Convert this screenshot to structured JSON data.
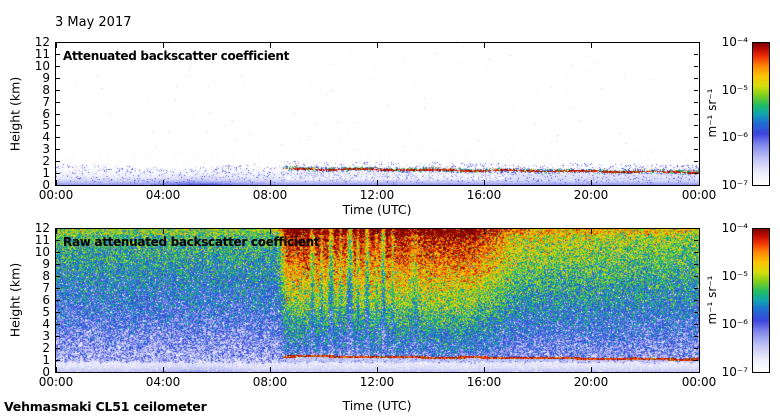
{
  "header": {
    "date_title": "3 May 2017"
  },
  "footer": {
    "station_label": "Vehmasmaki CL51 ceilometer"
  },
  "colors": {
    "background": "#ffffff",
    "axis": "#000000",
    "text": "#000000"
  },
  "colormap": {
    "description": "jet-style colormap fading to white at the low end",
    "stops": [
      [
        0.0,
        "#ffffff"
      ],
      [
        0.09,
        "#ececfb"
      ],
      [
        0.18,
        "#c3c6f5"
      ],
      [
        0.28,
        "#8289ec"
      ],
      [
        0.36,
        "#3c45dd"
      ],
      [
        0.44,
        "#1e6fd0"
      ],
      [
        0.5,
        "#0fa3b1"
      ],
      [
        0.56,
        "#1fbb66"
      ],
      [
        0.63,
        "#7ccf1e"
      ],
      [
        0.7,
        "#d8de0a"
      ],
      [
        0.77,
        "#fdc303"
      ],
      [
        0.84,
        "#fd8403"
      ],
      [
        0.9,
        "#f03405"
      ],
      [
        0.95,
        "#c40d03"
      ],
      [
        1.0,
        "#7a0403"
      ]
    ]
  },
  "chart_data": [
    {
      "type": "heatmap",
      "panel": "top",
      "title": "Attenuated backscatter coefficient",
      "xlabel": "Time (UTC)",
      "ylabel": "Height (km)",
      "x_ticks": [
        "00:00",
        "04:00",
        "08:00",
        "12:00",
        "16:00",
        "20:00",
        "00:00"
      ],
      "x_range_hours": [
        0,
        24
      ],
      "y_ticks": [
        0,
        1,
        2,
        3,
        4,
        5,
        6,
        7,
        8,
        9,
        10,
        11,
        12
      ],
      "y_range_km": [
        0,
        12
      ],
      "grid": false,
      "colorbar": {
        "unit": "m⁻¹ sr⁻¹",
        "tick_labels": [
          "10⁻⁴",
          "10⁻⁵",
          "10⁻⁶",
          "10⁻⁷"
        ],
        "log10_range": [
          -7,
          -4
        ],
        "position": "right"
      },
      "features": {
        "boundary_layer": "Aerosol/boundary layer from surface to ~1.0-1.5 km all day; ~1e-6 m-1 sr-1 near surface fading below 1e-7 by ~1.5 km",
        "elevated_layer": "Thin strong layer (~1e-5 to 1e-4, red/green speckled) near 1.3-1.5 km from ~08:30 UTC onward, slowly descending to ~1.1 km by midnight",
        "free_troposphere": "Below detection limit (<1e-7, white) above ~2 km"
      },
      "render": {
        "seed": 11,
        "bl_surface_value": 0.3,
        "bl_decay_km": 0.55,
        "bl_top_km": 1.05,
        "morning_patch": {
          "center_hour": 5.3,
          "width_hour": 1.5,
          "boost": 0.1
        },
        "aerosol_layer": {
          "start_hour": 8.45,
          "height_start_km": 1.4,
          "height_end_km": 1.12,
          "core_value": 0.88
        }
      }
    },
    {
      "type": "heatmap",
      "panel": "bottom",
      "title": "Raw attenuated backscatter coefficient",
      "xlabel": "Time (UTC)",
      "ylabel": "Height (km)",
      "x_ticks": [
        "00:00",
        "04:00",
        "08:00",
        "12:00",
        "16:00",
        "20:00",
        "00:00"
      ],
      "x_range_hours": [
        0,
        24
      ],
      "y_ticks": [
        0,
        1,
        2,
        3,
        4,
        5,
        6,
        7,
        8,
        9,
        10,
        11,
        12
      ],
      "y_range_km": [
        0,
        12
      ],
      "grid": false,
      "colorbar": {
        "unit": "m⁻¹ sr⁻¹",
        "tick_labels": [
          "10⁻⁴",
          "10⁻⁵",
          "10⁻⁶",
          "10⁻⁷"
        ],
        "log10_range": [
          -7,
          -4
        ],
        "position": "right"
      },
      "features": {
        "noise_night": "Height-increasing noise: ~1e-7-1e-6 (blue/white) below ~4 km, ~2e-6-8e-6 (green/yellow) near 10-12 km between 00:00-08:30 UTC",
        "noise_day": "Solar background 08:30-16:00 UTC raises apparent values to ~1e-5-1e-4 (orange/red) above ~6 km, decaying through the evening",
        "elevated_layer": "Thin red line (~1e-4) near 1.1-1.4 km from ~08:30 UTC onward; pale (<1e-7) region below it",
        "vertical_streaks": "Narrow low-signal bluish vertical streaks between ~09:30 and ~13:30 UTC",
        "surface_strip": "Pale lavender strip (~1e-7) below ~0.8 km all day"
      },
      "render": {
        "seed": 23,
        "night_base": 0.16,
        "night_top_gain": 0.42,
        "day_base": 0.24,
        "day_top_gain": 0.78,
        "day": {
          "rise": [
            8.25,
            8.6
          ],
          "plateau_end": 15.4,
          "fall_end": 17.4,
          "evening": 0.38,
          "late": 0.18
        },
        "jitter": 0.15,
        "block_jitter": 0.14,
        "strip_top_km": 0.85,
        "morning_patch": {
          "center_hour": 5.3,
          "width_hour": 1.5,
          "boost": 0.07
        },
        "aerosol_layer": {
          "start_hour": 8.45,
          "height_start_km": 1.36,
          "height_end_km": 1.1,
          "core_value": 0.85
        },
        "streaks": [
          [
            9.55,
            0.1,
            0.45
          ],
          [
            9.9,
            0.07,
            0.35
          ],
          [
            10.25,
            0.12,
            0.55
          ],
          [
            10.6,
            0.08,
            0.35
          ],
          [
            10.95,
            0.15,
            0.6
          ],
          [
            11.25,
            0.07,
            0.35
          ],
          [
            11.6,
            0.11,
            0.5
          ],
          [
            11.95,
            0.07,
            0.3
          ],
          [
            12.2,
            0.1,
            0.55
          ],
          [
            12.55,
            0.08,
            0.35
          ],
          [
            13.35,
            0.22,
            0.25
          ]
        ]
      }
    }
  ]
}
